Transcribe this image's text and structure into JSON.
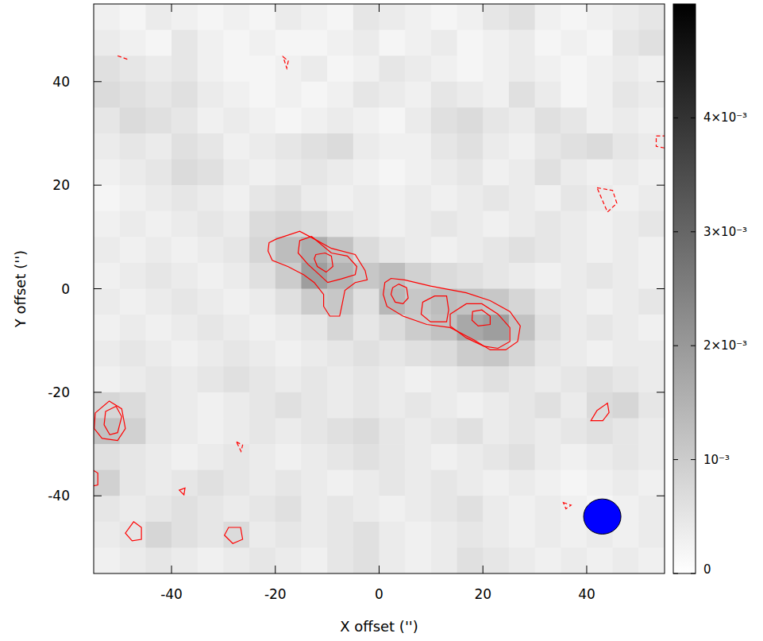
{
  "chart_data": {
    "type": "heatmap",
    "xlabel": "X offset ('')",
    "ylabel": "Y offset ('')",
    "xlim": [
      -55,
      55
    ],
    "ylim": [
      -55,
      55
    ],
    "xticks": [
      -40,
      -20,
      0,
      20,
      40
    ],
    "yticks": [
      -40,
      -20,
      0,
      20,
      40
    ],
    "x": [
      -52.5,
      -47.5,
      -42.5,
      -37.5,
      -32.5,
      -27.5,
      -22.5,
      -17.5,
      -12.5,
      -7.5,
      -2.5,
      2.5,
      7.5,
      12.5,
      17.5,
      22.5,
      27.5,
      32.5,
      37.5,
      42.5,
      47.5,
      52.5
    ],
    "y": [
      52.5,
      47.5,
      42.5,
      37.5,
      32.5,
      27.5,
      22.5,
      17.5,
      12.5,
      7.5,
      2.5,
      -2.5,
      -7.5,
      -12.5,
      -17.5,
      -22.5,
      -27.5,
      -32.5,
      -37.5,
      -42.5,
      -47.5,
      -52.5
    ],
    "z": [
      [
        0.0003,
        0.0002,
        0.0004,
        0.0003,
        0.0002,
        0.0003,
        0.0002,
        0.0004,
        0.0003,
        0.0002,
        0.0005,
        0.0004,
        0.0003,
        0.0002,
        0.0003,
        0.0005,
        0.0006,
        0.0003,
        0.0002,
        0.0003,
        0.0004,
        0.0005
      ],
      [
        0.0004,
        0.0003,
        0.0002,
        0.0005,
        0.0003,
        0.0002,
        0.0003,
        0.0002,
        0.0002,
        0.0003,
        0.0004,
        0.0002,
        0.0003,
        0.0004,
        0.0002,
        0.0003,
        0.0004,
        0.0002,
        0.0003,
        0.0002,
        0.0005,
        0.0006
      ],
      [
        0.0006,
        0.0005,
        0.0004,
        0.0005,
        0.0003,
        0.0002,
        0.0002,
        0.0003,
        0.0004,
        0.0002,
        0.0003,
        0.0005,
        0.0004,
        0.0003,
        0.0002,
        0.0003,
        0.0004,
        0.0003,
        0.0002,
        0.0003,
        0.0004,
        0.0003
      ],
      [
        0.0007,
        0.0006,
        0.0005,
        0.0006,
        0.0004,
        0.0003,
        0.0002,
        0.0003,
        0.0002,
        0.0003,
        0.0005,
        0.0004,
        0.0003,
        0.0005,
        0.0004,
        0.0003,
        0.0006,
        0.0004,
        0.0002,
        0.0003,
        0.0005,
        0.0004
      ],
      [
        0.0005,
        0.0007,
        0.0006,
        0.0005,
        0.0003,
        0.0004,
        0.0003,
        0.0002,
        0.0003,
        0.0004,
        0.0003,
        0.0002,
        0.0004,
        0.0006,
        0.0007,
        0.0005,
        0.0004,
        0.0006,
        0.0005,
        0.0003,
        0.0004,
        0.0003
      ],
      [
        0.0004,
        0.0005,
        0.0004,
        0.0006,
        0.0005,
        0.0003,
        0.0004,
        0.0005,
        0.0006,
        0.0007,
        0.0004,
        0.0003,
        0.0003,
        0.0005,
        0.0006,
        0.0004,
        0.0003,
        0.0005,
        0.0006,
        0.0007,
        0.0005,
        0.0004
      ],
      [
        0.0003,
        0.0004,
        0.0005,
        0.0007,
        0.0006,
        0.0004,
        0.0003,
        0.0004,
        0.0005,
        0.0004,
        0.0003,
        0.0002,
        0.0003,
        0.0004,
        0.0005,
        0.0003,
        0.0004,
        0.0006,
        0.0004,
        0.0003,
        0.0004,
        0.0003
      ],
      [
        0.0002,
        0.0003,
        0.0004,
        0.0005,
        0.0004,
        0.0003,
        0.0005,
        0.0006,
        0.0004,
        0.0003,
        0.0004,
        0.0003,
        0.0004,
        0.0003,
        0.0004,
        0.0005,
        0.0004,
        0.0003,
        0.0005,
        0.0004,
        0.0003,
        0.0004
      ],
      [
        0.0003,
        0.0004,
        0.0003,
        0.0004,
        0.0005,
        0.0004,
        0.0007,
        0.0008,
        0.0007,
        0.0005,
        0.0004,
        0.0003,
        0.0004,
        0.0005,
        0.0004,
        0.0003,
        0.0004,
        0.0005,
        0.0004,
        0.0003,
        0.0004,
        0.0005
      ],
      [
        0.0004,
        0.0003,
        0.0004,
        0.0003,
        0.0004,
        0.0005,
        0.0008,
        0.0013,
        0.0016,
        0.0012,
        0.0007,
        0.0005,
        0.0004,
        0.0003,
        0.0004,
        0.0005,
        0.0006,
        0.0005,
        0.0004,
        0.0003,
        0.0004,
        0.0003
      ],
      [
        0.0003,
        0.0004,
        0.0005,
        0.0004,
        0.0003,
        0.0004,
        0.0006,
        0.001,
        0.0019,
        0.0015,
        0.0011,
        0.0013,
        0.0009,
        0.0007,
        0.0006,
        0.0005,
        0.0004,
        0.0003,
        0.0004,
        0.0005,
        0.0004,
        0.0003
      ],
      [
        0.0004,
        0.0003,
        0.0004,
        0.0005,
        0.0004,
        0.0003,
        0.0004,
        0.0006,
        0.001,
        0.0011,
        0.0006,
        0.0014,
        0.0011,
        0.0013,
        0.0012,
        0.0011,
        0.0008,
        0.0005,
        0.0004,
        0.0003,
        0.0004,
        0.0005
      ],
      [
        0.0003,
        0.0004,
        0.0003,
        0.0004,
        0.0005,
        0.0004,
        0.0003,
        0.0004,
        0.0005,
        0.0008,
        0.0005,
        0.0007,
        0.001,
        0.0012,
        0.0017,
        0.0019,
        0.0012,
        0.0006,
        0.0004,
        0.0005,
        0.0004,
        0.0003
      ],
      [
        0.0004,
        0.0005,
        0.0004,
        0.0003,
        0.0004,
        0.0005,
        0.0004,
        0.0003,
        0.0004,
        0.0005,
        0.0006,
        0.0005,
        0.0006,
        0.0007,
        0.001,
        0.0011,
        0.0008,
        0.0005,
        0.0004,
        0.0003,
        0.0004,
        0.0004
      ],
      [
        0.0003,
        0.0004,
        0.0005,
        0.0004,
        0.0005,
        0.0006,
        0.0005,
        0.0004,
        0.0005,
        0.0004,
        0.0005,
        0.0004,
        0.0003,
        0.0004,
        0.0005,
        0.0006,
        0.0005,
        0.0004,
        0.0005,
        0.0006,
        0.0005,
        0.0004
      ],
      [
        0.0008,
        0.0007,
        0.0005,
        0.0004,
        0.0003,
        0.0004,
        0.0005,
        0.0006,
        0.0005,
        0.0004,
        0.0005,
        0.0004,
        0.0005,
        0.0004,
        0.0003,
        0.0004,
        0.0005,
        0.0006,
        0.0004,
        0.0007,
        0.0008,
        0.0005
      ],
      [
        0.0012,
        0.0009,
        0.0005,
        0.0004,
        0.0003,
        0.0004,
        0.0005,
        0.0004,
        0.0005,
        0.0006,
        0.0007,
        0.0005,
        0.0004,
        0.0005,
        0.0006,
        0.0004,
        0.0005,
        0.0004,
        0.0005,
        0.0006,
        0.0005,
        0.0004
      ],
      [
        0.0006,
        0.0005,
        0.0004,
        0.0003,
        0.0004,
        0.0005,
        0.0004,
        0.0003,
        0.0004,
        0.0005,
        0.0006,
        0.0005,
        0.0004,
        0.0003,
        0.0004,
        0.0005,
        0.0006,
        0.0004,
        0.0003,
        0.0004,
        0.0005,
        0.0004
      ],
      [
        0.0009,
        0.0005,
        0.0004,
        0.0005,
        0.0006,
        0.0005,
        0.0004,
        0.0005,
        0.0004,
        0.0003,
        0.0004,
        0.0005,
        0.0004,
        0.0005,
        0.0004,
        0.0003,
        0.0004,
        0.0003,
        0.0002,
        0.0003,
        0.0004,
        0.0003
      ],
      [
        0.0005,
        0.0004,
        0.0005,
        0.0006,
        0.0005,
        0.0004,
        0.0005,
        0.0006,
        0.0004,
        0.0005,
        0.0004,
        0.0003,
        0.0004,
        0.0005,
        0.0006,
        0.0004,
        0.0003,
        0.0004,
        0.0003,
        0.0002,
        0.0003,
        0.0004
      ],
      [
        0.0004,
        0.0005,
        0.0008,
        0.0006,
        0.0005,
        0.0007,
        0.0004,
        0.0005,
        0.0004,
        0.0005,
        0.0006,
        0.0004,
        0.0003,
        0.0004,
        0.0005,
        0.0004,
        0.0003,
        0.0004,
        0.0003,
        0.0004,
        0.0003,
        0.0004
      ],
      [
        0.0003,
        0.0004,
        0.0005,
        0.0004,
        0.0003,
        0.0004,
        0.0005,
        0.0004,
        0.0003,
        0.0005,
        0.0006,
        0.0004,
        0.0003,
        0.0004,
        0.0006,
        0.0005,
        0.0004,
        0.0003,
        0.0004,
        0.0003,
        0.0004,
        0.0003
      ]
    ],
    "colorbar": {
      "range": [
        0,
        0.005
      ],
      "colors": [
        "#ffffff",
        "#000000"
      ],
      "ticks": [
        0,
        {
          "value": 0.001,
          "label": "10⁻³"
        },
        {
          "value": 0.002,
          "label": "2×10⁻³"
        },
        {
          "value": 0.003,
          "label": "3×10⁻³"
        },
        {
          "value": 0.004,
          "label": "4×10⁻³"
        }
      ]
    },
    "contours": {
      "color": "#ff0000",
      "paths": [
        {
          "level": 0.0009,
          "x": [
            -21.2,
            -19.8,
            -15.3,
            -12.5,
            -9.2,
            -4.6,
            -2.7,
            -2.3,
            -4.6,
            -6.6,
            -7.2,
            -7.6,
            -9.5,
            -10.7,
            -10.7,
            -12.5,
            -14.5,
            -17.6,
            -20.6,
            -21.4
          ],
          "y": [
            8.9,
            9.6,
            11.1,
            9.6,
            7.8,
            6.6,
            3.5,
            1.7,
            1.2,
            -0.3,
            -3.4,
            -5.3,
            -5.3,
            -3.4,
            -1.1,
            1.2,
            2.7,
            4.3,
            5.5,
            7.3
          ]
        },
        {
          "level": 0.0013,
          "x": [
            -15.3,
            -13.0,
            -9.2,
            -6.1,
            -4.3,
            -4.6,
            -7.3,
            -9.9,
            -11.5,
            -13.7,
            -15.6
          ],
          "y": [
            9.3,
            10.1,
            6.9,
            6.3,
            4.3,
            2.7,
            1.9,
            1.2,
            2.7,
            4.7,
            6.9
          ]
        },
        {
          "level": 0.0017,
          "x": [
            -12.2,
            -10.4,
            -9.2,
            -8.9,
            -10.2,
            -11.9,
            -12.5
          ],
          "y": [
            6.6,
            6.9,
            6.3,
            4.3,
            3.2,
            4.3,
            5.8
          ]
        },
        {
          "level": 0.0009,
          "x": [
            1.1,
            2.3,
            4.9,
            9.9,
            16.8,
            21.4,
            25.2,
            27.2,
            26.7,
            24.4,
            21.4,
            18.3,
            13.7,
            9.2,
            4.6,
            1.5,
            0.8
          ],
          "y": [
            1.2,
            2.0,
            1.7,
            0.5,
            -0.8,
            -2.3,
            -4.4,
            -7.2,
            -10.2,
            -11.8,
            -11.8,
            -9.9,
            -7.5,
            -6.9,
            -5.3,
            -3.4,
            -1.1
          ]
        },
        {
          "level": 0.0013,
          "x": [
            2.6,
            3.8,
            5.3,
            5.6,
            4.6,
            3.1,
            2.3
          ],
          "y": [
            0.2,
            0.9,
            0.2,
            -1.8,
            -2.9,
            -2.6,
            -1.1
          ]
        },
        {
          "level": 0.0013,
          "x": [
            8.4,
            10.7,
            13.0,
            13.4,
            13.0,
            9.9,
            8.1
          ],
          "y": [
            -2.6,
            -1.4,
            -1.4,
            -4.1,
            -6.4,
            -6.4,
            -4.9
          ]
        },
        {
          "level": 0.0013,
          "x": [
            13.7,
            16.8,
            19.8,
            22.9,
            25.2,
            25.2,
            22.9,
            20.2,
            16.8,
            13.7
          ],
          "y": [
            -4.9,
            -2.9,
            -2.9,
            -4.9,
            -7.5,
            -10.2,
            -11.5,
            -11.1,
            -9.5,
            -7.2
          ]
        },
        {
          "level": 0.0017,
          "x": [
            18.0,
            19.8,
            21.4,
            21.4,
            19.1,
            17.9
          ],
          "y": [
            -4.4,
            -4.1,
            -5.3,
            -6.9,
            -7.2,
            -6.1
          ]
        },
        {
          "level": 0.0009,
          "x": [
            -54.7,
            -52.0,
            -49.6,
            -48.9,
            -50.4,
            -53.4,
            -54.9
          ],
          "y": [
            -24.0,
            -21.7,
            -23.2,
            -27.0,
            -29.3,
            -28.9,
            -27.0
          ]
        },
        {
          "level": 0.0013,
          "x": [
            -52.7,
            -50.7,
            -49.6,
            -50.4,
            -51.9,
            -53.0
          ],
          "y": [
            -23.7,
            -22.7,
            -24.7,
            -27.8,
            -28.2,
            -26.3
          ]
        },
        {
          "level": 0.0009,
          "x": [
            -47.3,
            -45.8,
            -45.8,
            -47.6,
            -48.9
          ],
          "y": [
            -45.0,
            -46.1,
            -48.4,
            -48.7,
            -47.2
          ]
        },
        {
          "level": 0.0009,
          "x": [
            -29.0,
            -26.7,
            -26.3,
            -28.2,
            -29.8
          ],
          "y": [
            -46.1,
            -46.1,
            -48.4,
            -49.2,
            -47.6
          ]
        },
        {
          "level": 0.0009,
          "x": [
            42.0,
            44.0,
            44.3,
            43.1,
            40.8
          ],
          "y": [
            -23.5,
            -22.1,
            -23.9,
            -25.5,
            -25.5
          ]
        },
        {
          "level": 0.0009,
          "x": [
            -56.0,
            -54.2,
            -54.2,
            -56.0
          ],
          "y": [
            -34.5,
            -35.6,
            -37.9,
            -38.3
          ]
        },
        {
          "level": 0.0009,
          "x": [
            -38.5,
            -37.4,
            -37.6
          ],
          "y": [
            -38.9,
            -38.5,
            -39.8
          ]
        },
        {
          "level": -0.0009,
          "x": [
            42.0,
            45.0,
            45.8,
            44.0
          ],
          "y": [
            19.5,
            19.0,
            16.5,
            14.8
          ]
        },
        {
          "level": -0.0009,
          "x": [
            53.4,
            56.0,
            56.0,
            53.4
          ],
          "y": [
            29.5,
            29.5,
            27.0,
            27.5
          ]
        },
        {
          "level": -0.0009,
          "x": [
            35.5,
            37.0,
            36.0
          ],
          "y": [
            -41.3,
            -41.8,
            -42.5
          ]
        },
        {
          "level": -0.0009,
          "x": [
            -27.5,
            -26.3,
            -26.6
          ],
          "y": [
            -29.6,
            -30.2,
            -31.4
          ]
        },
        {
          "level": -0.0009,
          "x": [
            -50.4,
            -48.5
          ],
          "y": [
            45.0,
            44.3
          ]
        },
        {
          "level": -0.0009,
          "x": [
            -18.5,
            -17.5,
            -17.8
          ],
          "y": [
            44.8,
            44.0,
            42.6
          ]
        }
      ]
    },
    "beam": {
      "x": 43,
      "y": -44,
      "major": 7.2,
      "minor": 6.8,
      "color": "#0000ff"
    }
  }
}
